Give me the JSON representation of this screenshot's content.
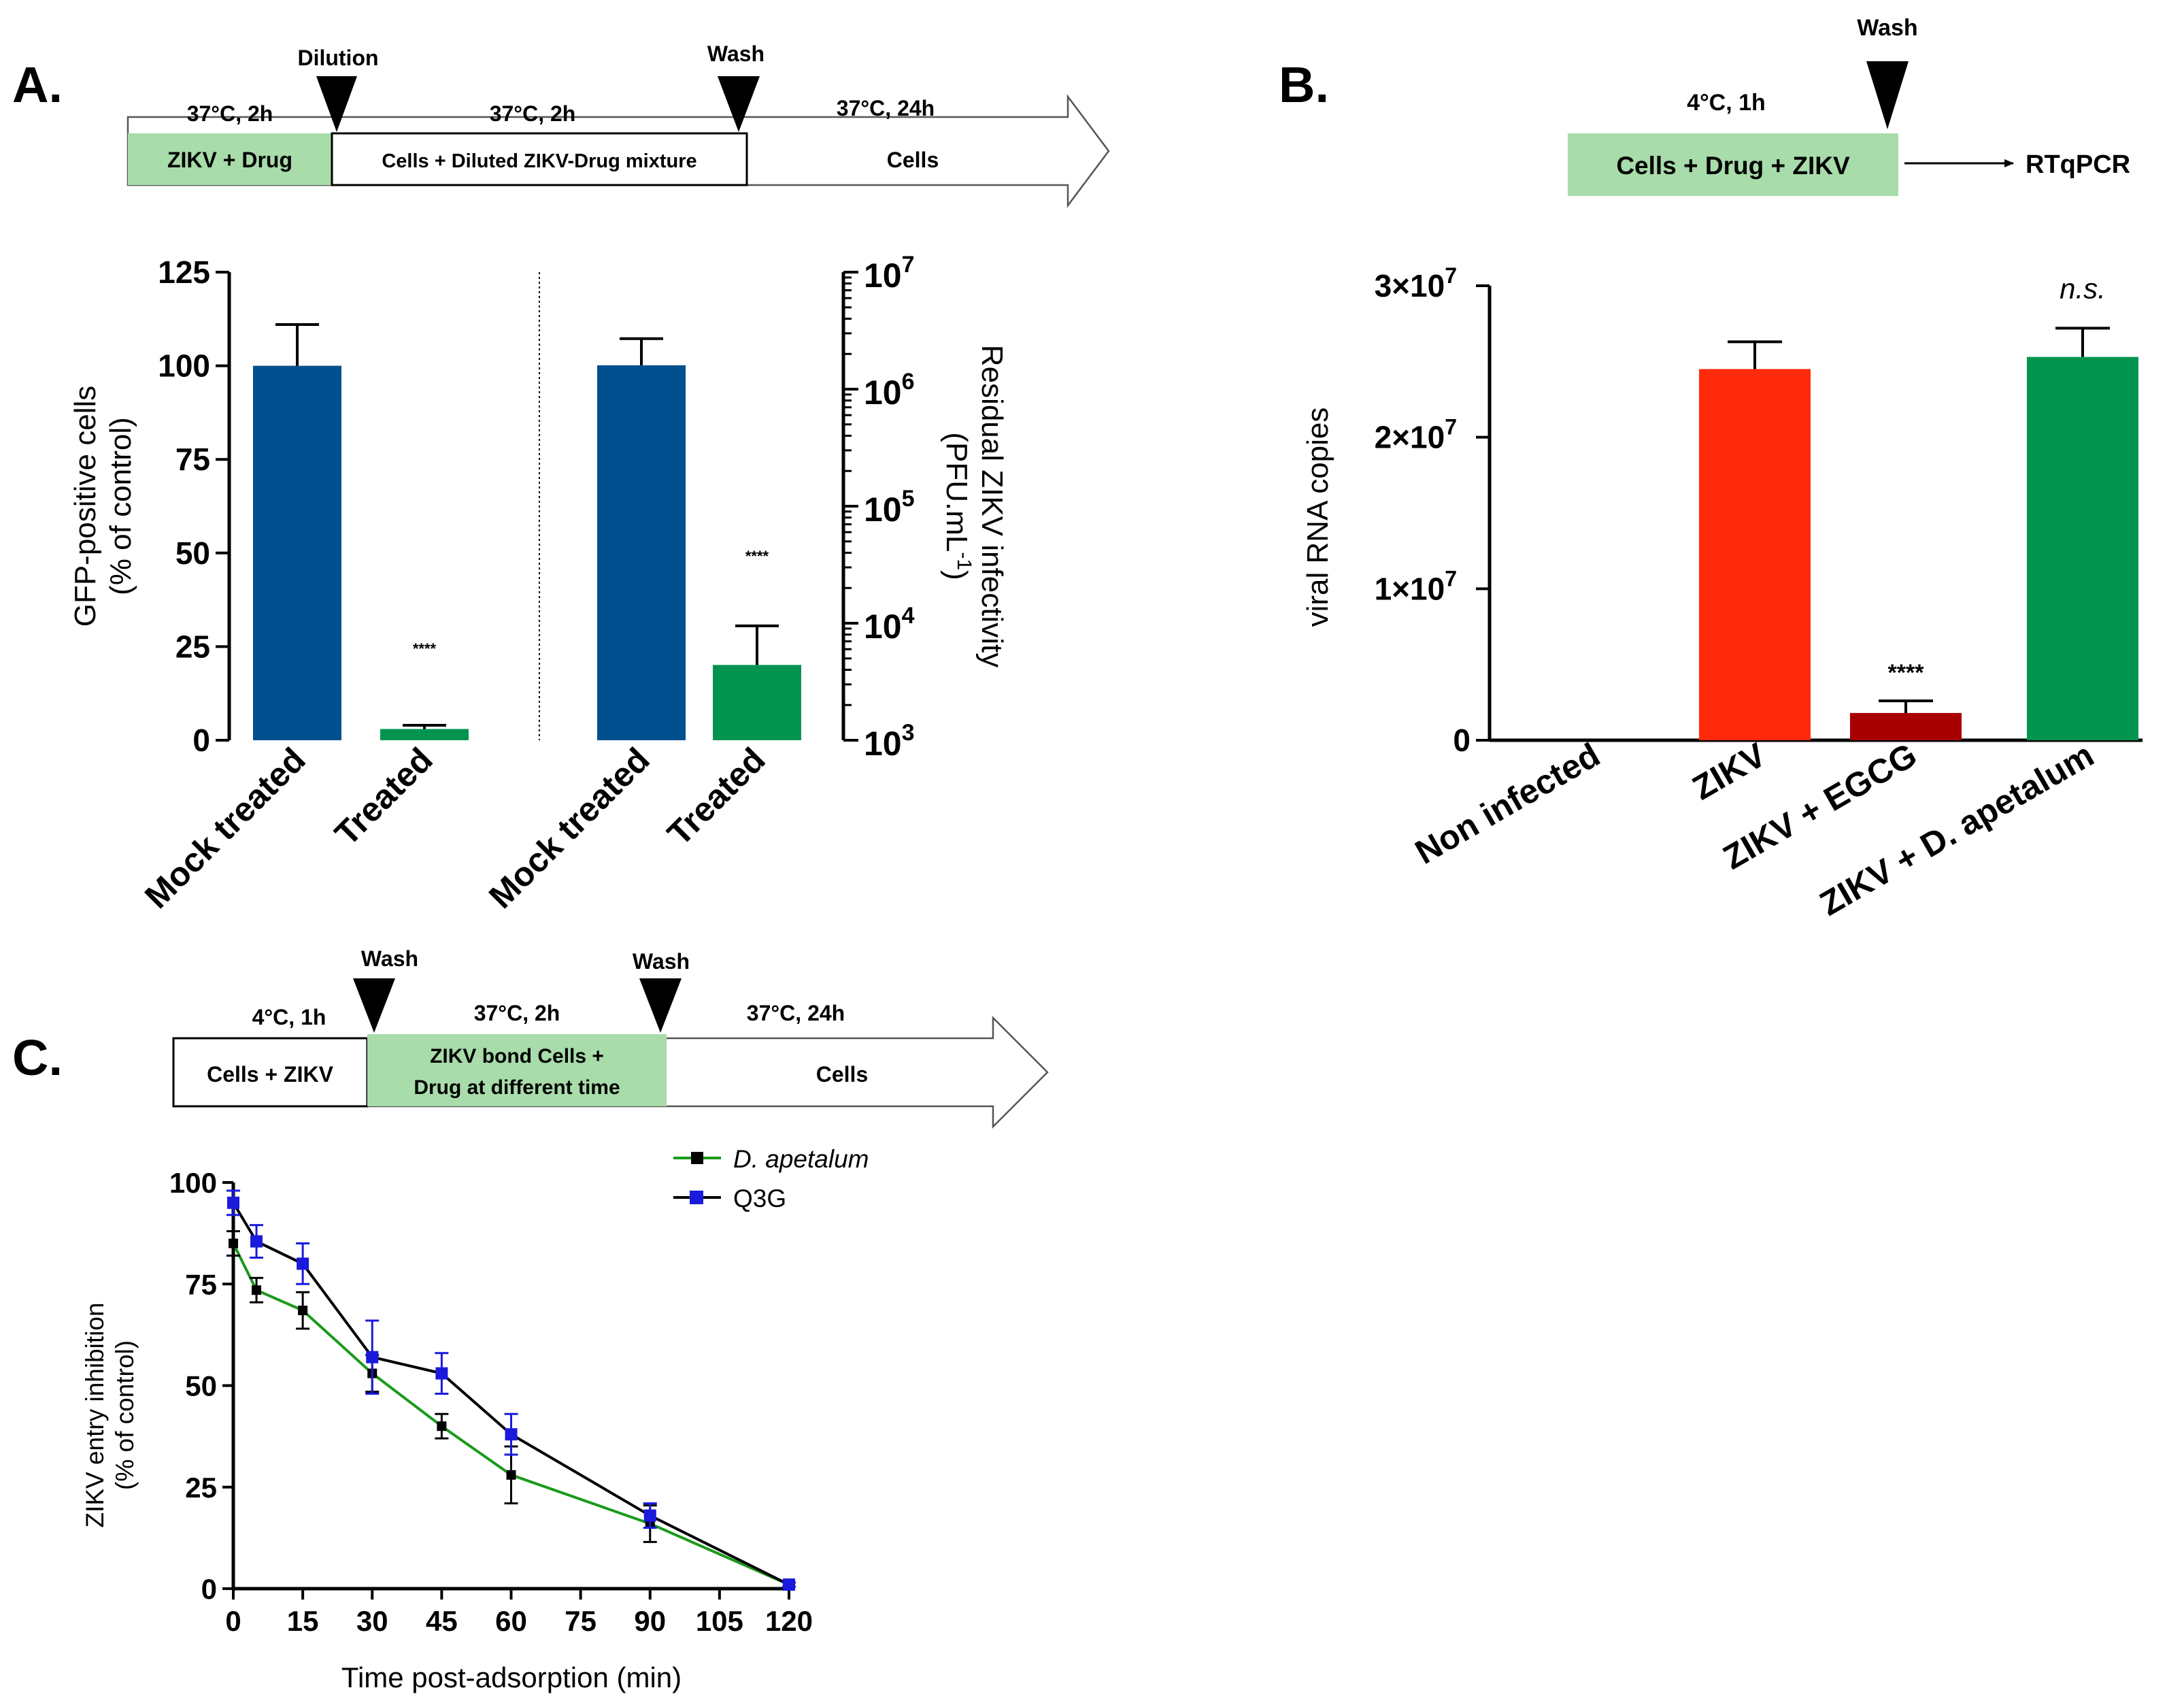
{
  "panels": {
    "a": {
      "label": "A.",
      "schematic": {
        "arrows": [
          "Dilution",
          "Wash"
        ],
        "conditions": [
          "37°C, 2h",
          "37°C, 2h",
          "37°C, 24h"
        ],
        "steps": [
          "ZIKV + Drug",
          "Cells + Diluted ZIKV-Drug mixture",
          "Cells"
        ]
      }
    },
    "b": {
      "label": "B.",
      "schematic": {
        "arrow": "Wash",
        "condition": "4°C, 1h",
        "box": "Cells + Drug + ZIKV",
        "readout": "RTqPCR"
      }
    },
    "c": {
      "label": "C.",
      "schematic": {
        "arrows": [
          "Wash",
          "Wash"
        ],
        "conditions": [
          "4°C, 1h",
          "37°C, 2h",
          "37°C, 24h"
        ],
        "steps": [
          "Cells + ZIKV",
          "ZIKV bond Cells +",
          "Drug at different time",
          "Cells"
        ]
      }
    }
  },
  "colors": {
    "blue_bar": "#00508f",
    "green_bar": "#009450",
    "red_bar": "#ff2a0c",
    "darkred_bar": "#a80000",
    "schematic_green": "#a8dcaa",
    "line_green": "#1a9a1a",
    "line_black": "#000000",
    "marker_blue": "#1a1adc"
  },
  "chart_data": [
    {
      "panel": "A-left",
      "type": "bar",
      "categories": [
        "Mock treated",
        "Treated"
      ],
      "values": [
        100,
        3
      ],
      "errors": [
        11,
        1
      ],
      "significance": [
        "",
        "****"
      ],
      "ylabel": [
        "GFP-positive cells",
        "(% of control)"
      ],
      "ylim": [
        0,
        125
      ],
      "yticks": [
        "0",
        "25",
        "50",
        "75",
        "100",
        "125"
      ]
    },
    {
      "panel": "A-right",
      "type": "bar",
      "scale": "log",
      "categories": [
        "Mock treated",
        "Treated"
      ],
      "values": [
        1600000,
        4400
      ],
      "errors_upper": [
        2700000,
        9500
      ],
      "significance": [
        "",
        "****"
      ],
      "ylabel": [
        "Residual ZIKV infectivity",
        "(PFU.mL",
        "-1",
        ")"
      ],
      "ylim": [
        1000,
        10000000
      ],
      "yticks": [
        {
          "base": "10",
          "exp": "3"
        },
        {
          "base": "10",
          "exp": "4"
        },
        {
          "base": "10",
          "exp": "5"
        },
        {
          "base": "10",
          "exp": "6"
        },
        {
          "base": "10",
          "exp": "7"
        }
      ]
    },
    {
      "panel": "B",
      "type": "bar",
      "categories": [
        "Non infected",
        "ZIKV",
        "ZIKV + EGCG",
        "ZIKV + D. apetalum"
      ],
      "values": [
        0,
        24500000,
        1800000,
        25300000
      ],
      "errors": [
        0,
        1800000,
        800000,
        1900000
      ],
      "significance": [
        "",
        "",
        "****",
        "n.s."
      ],
      "ylabel": "viral RNA copies",
      "ylim": [
        0,
        30000000
      ],
      "yticks": [
        {
          "text": "0"
        },
        {
          "text": "1×10",
          "exp": "7"
        },
        {
          "text": "2×10",
          "exp": "7"
        },
        {
          "text": "3×10",
          "exp": "7"
        }
      ]
    },
    {
      "panel": "C",
      "type": "line",
      "x": [
        0,
        5,
        15,
        30,
        45,
        60,
        90,
        120
      ],
      "series": [
        {
          "name": "D. apetalum",
          "values": [
            85,
            73.5,
            68.5,
            53,
            40,
            28,
            16,
            1
          ],
          "errors": [
            3,
            3,
            4.5,
            4.5,
            3,
            7,
            4.5,
            0.5
          ]
        },
        {
          "name": "Q3G",
          "values": [
            95,
            85.5,
            80,
            57,
            53,
            38,
            18,
            1
          ],
          "errors": [
            3,
            4,
            5,
            9,
            5,
            5,
            3,
            0.5
          ]
        }
      ],
      "xlabel": "Time post-adsorption (min)",
      "ylabel": [
        "ZIKV entry inhibition",
        "(% of control)"
      ],
      "xlim": [
        0,
        120
      ],
      "ylim": [
        0,
        100
      ],
      "xticks": [
        "0",
        "15",
        "30",
        "45",
        "60",
        "75",
        "90",
        "105",
        "120"
      ],
      "yticks": [
        "0",
        "25",
        "50",
        "75",
        "100"
      ]
    }
  ]
}
